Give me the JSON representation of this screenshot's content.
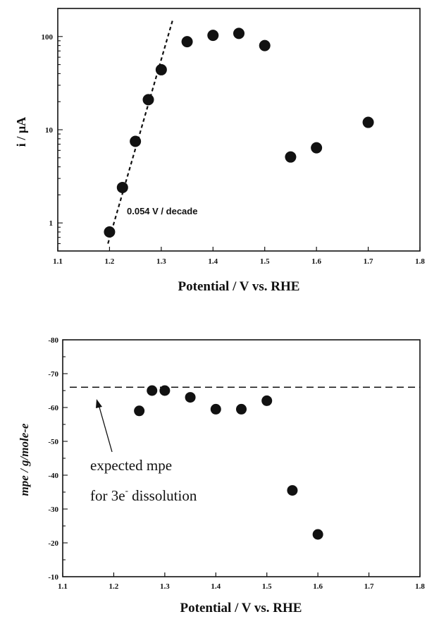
{
  "chart_data": [
    {
      "type": "scatter",
      "xlabel": "Potential / V vs. RHE",
      "ylabel": "i / µA",
      "yscale": "log",
      "xlim": [
        1.1,
        1.8
      ],
      "ylim": [
        0.5,
        200
      ],
      "xticks": [
        "1.1",
        "1.2",
        "1.3",
        "1.4",
        "1.5",
        "1.6",
        "1.7",
        "1.8"
      ],
      "yticks": [
        {
          "value": 1,
          "label": "1"
        },
        {
          "value": 10,
          "label": "10"
        },
        {
          "value": 100,
          "label": "100"
        }
      ],
      "points": [
        {
          "x": 1.2,
          "y": 0.8
        },
        {
          "x": 1.225,
          "y": 2.4
        },
        {
          "x": 1.25,
          "y": 7.5
        },
        {
          "x": 1.275,
          "y": 21
        },
        {
          "x": 1.3,
          "y": 44
        },
        {
          "x": 1.35,
          "y": 88
        },
        {
          "x": 1.4,
          "y": 103
        },
        {
          "x": 1.45,
          "y": 108
        },
        {
          "x": 1.5,
          "y": 80
        },
        {
          "x": 1.55,
          "y": 5.1
        },
        {
          "x": 1.6,
          "y": 6.4
        },
        {
          "x": 1.7,
          "y": 12
        }
      ],
      "fit_line": {
        "x": [
          1.197,
          1.322
        ],
        "y": [
          0.6,
          150
        ],
        "style": "dashed"
      },
      "annotation": "0.054 V / decade",
      "grid": false
    },
    {
      "type": "scatter",
      "xlabel": "Potential / V vs. RHE",
      "ylabel": "mpe / g/mole-e",
      "xlim": [
        1.1,
        1.8
      ],
      "ylim": [
        -10,
        -80
      ],
      "y_inverted": true,
      "xticks": [
        "1.1",
        "1.2",
        "1.3",
        "1.4",
        "1.5",
        "1.6",
        "1.7",
        "1.8"
      ],
      "yticks": [
        {
          "value": -10,
          "label": "-10"
        },
        {
          "value": -20,
          "label": "-20"
        },
        {
          "value": -30,
          "label": "-30"
        },
        {
          "value": -40,
          "label": "-40"
        },
        {
          "value": -50,
          "label": "-50"
        },
        {
          "value": -60,
          "label": "-60"
        },
        {
          "value": -70,
          "label": "-70"
        },
        {
          "value": -80,
          "label": "-80"
        }
      ],
      "points": [
        {
          "x": 1.25,
          "y": -59
        },
        {
          "x": 1.275,
          "y": -65
        },
        {
          "x": 1.3,
          "y": -65
        },
        {
          "x": 1.35,
          "y": -63
        },
        {
          "x": 1.4,
          "y": -59.5
        },
        {
          "x": 1.45,
          "y": -59.5
        },
        {
          "x": 1.5,
          "y": -62
        },
        {
          "x": 1.55,
          "y": -35.5
        },
        {
          "x": 1.6,
          "y": -22.5
        }
      ],
      "reference_line": {
        "y": -66,
        "style": "dashed"
      },
      "annotation": {
        "line1": "expected mpe",
        "line2_prefix": "for 3e",
        "line2_sup": "-",
        "line2_suffix": " dissolution"
      },
      "grid": false
    }
  ]
}
